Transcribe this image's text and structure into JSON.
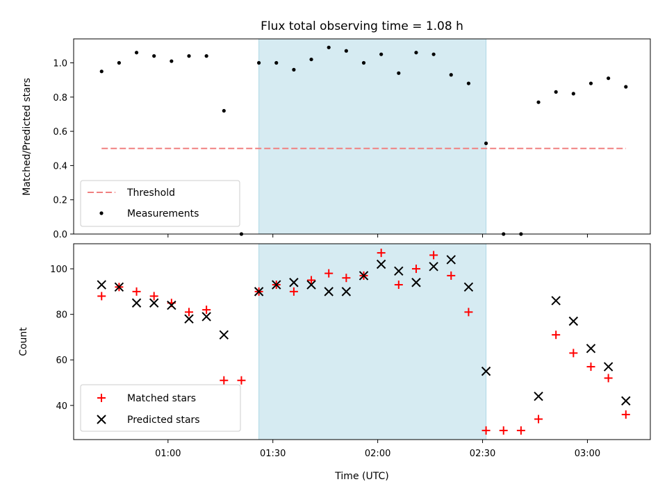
{
  "chart_data": [
    {
      "type": "scatter",
      "title": "Flux total observing time = 1.08 h",
      "ylabel": "Matched/Predicted stars",
      "xlabel": "",
      "ylim": [
        0,
        1.14
      ],
      "yticks": [
        "0.0",
        "0.2",
        "0.4",
        "0.6",
        "0.8",
        "1.0"
      ],
      "xlim": [
        "00:33",
        "03:18"
      ],
      "highlight_span": [
        "01:26",
        "02:31"
      ],
      "legend_position": "lower-left",
      "threshold": {
        "name": "Threshold",
        "value": 0.5,
        "x_range": [
          "00:41",
          "03:11"
        ],
        "color": "#f08080",
        "style": "dashed"
      },
      "series": [
        {
          "name": "Measurements",
          "color": "#000000",
          "marker": "dot",
          "points": [
            [
              "00:41",
              0.95
            ],
            [
              "00:46",
              1.0
            ],
            [
              "00:51",
              1.06
            ],
            [
              "00:56",
              1.04
            ],
            [
              "01:01",
              1.01
            ],
            [
              "01:06",
              1.04
            ],
            [
              "01:11",
              1.04
            ],
            [
              "01:16",
              0.72
            ],
            [
              "01:21",
              0.0
            ],
            [
              "01:26",
              1.0
            ],
            [
              "01:31",
              1.0
            ],
            [
              "01:36",
              0.96
            ],
            [
              "01:41",
              1.02
            ],
            [
              "01:46",
              1.09
            ],
            [
              "01:51",
              1.07
            ],
            [
              "01:56",
              1.0
            ],
            [
              "02:01",
              1.05
            ],
            [
              "02:06",
              0.94
            ],
            [
              "02:11",
              1.06
            ],
            [
              "02:16",
              1.05
            ],
            [
              "02:21",
              0.93
            ],
            [
              "02:26",
              0.88
            ],
            [
              "02:31",
              0.53
            ],
            [
              "02:36",
              0.0
            ],
            [
              "02:41",
              0.0
            ],
            [
              "02:46",
              0.77
            ],
            [
              "02:51",
              0.83
            ],
            [
              "02:56",
              0.82
            ],
            [
              "03:01",
              0.88
            ],
            [
              "03:06",
              0.91
            ],
            [
              "03:11",
              0.86
            ]
          ]
        }
      ]
    },
    {
      "type": "scatter",
      "title": "",
      "ylabel": "Count",
      "xlabel": "Time (UTC)",
      "ylim": [
        25,
        111
      ],
      "yticks": [
        "40",
        "60",
        "80",
        "100"
      ],
      "xticks": [
        "01:00",
        "01:30",
        "02:00",
        "02:30",
        "03:00"
      ],
      "xlim": [
        "00:33",
        "03:18"
      ],
      "highlight_span": [
        "01:26",
        "02:31"
      ],
      "legend_position": "lower-left",
      "series": [
        {
          "name": "Matched stars",
          "color": "#ff0000",
          "marker": "plus",
          "points": [
            [
              "00:41",
              88
            ],
            [
              "00:46",
              92
            ],
            [
              "00:51",
              90
            ],
            [
              "00:56",
              88
            ],
            [
              "01:01",
              85
            ],
            [
              "01:06",
              81
            ],
            [
              "01:11",
              82
            ],
            [
              "01:16",
              51
            ],
            [
              "01:21",
              51
            ],
            [
              "01:26",
              90
            ],
            [
              "01:31",
              93
            ],
            [
              "01:36",
              90
            ],
            [
              "01:41",
              95
            ],
            [
              "01:46",
              98
            ],
            [
              "01:51",
              96
            ],
            [
              "01:56",
              97
            ],
            [
              "02:01",
              107
            ],
            [
              "02:06",
              93
            ],
            [
              "02:11",
              100
            ],
            [
              "02:16",
              106
            ],
            [
              "02:21",
              97
            ],
            [
              "02:26",
              81
            ],
            [
              "02:31",
              29
            ],
            [
              "02:36",
              29
            ],
            [
              "02:41",
              29
            ],
            [
              "02:46",
              34
            ],
            [
              "02:51",
              71
            ],
            [
              "02:56",
              63
            ],
            [
              "03:01",
              57
            ],
            [
              "03:06",
              52
            ],
            [
              "03:11",
              36
            ]
          ]
        },
        {
          "name": "Predicted stars",
          "color": "#000000",
          "marker": "x",
          "points": [
            [
              "00:41",
              93
            ],
            [
              "00:46",
              92
            ],
            [
              "00:51",
              85
            ],
            [
              "00:56",
              85
            ],
            [
              "01:01",
              84
            ],
            [
              "01:06",
              78
            ],
            [
              "01:11",
              79
            ],
            [
              "01:16",
              71
            ],
            [
              "01:26",
              90
            ],
            [
              "01:31",
              93
            ],
            [
              "01:36",
              94
            ],
            [
              "01:41",
              93
            ],
            [
              "01:46",
              90
            ],
            [
              "01:51",
              90
            ],
            [
              "01:56",
              97
            ],
            [
              "02:01",
              102
            ],
            [
              "02:06",
              99
            ],
            [
              "02:11",
              94
            ],
            [
              "02:16",
              101
            ],
            [
              "02:21",
              104
            ],
            [
              "02:26",
              92
            ],
            [
              "02:31",
              55
            ],
            [
              "02:46",
              44
            ],
            [
              "02:51",
              86
            ],
            [
              "02:56",
              77
            ],
            [
              "03:01",
              65
            ],
            [
              "03:06",
              57
            ],
            [
              "03:11",
              42
            ]
          ]
        }
      ]
    }
  ],
  "colors": {
    "span": "#add8e6",
    "threshold": "#f08080"
  }
}
